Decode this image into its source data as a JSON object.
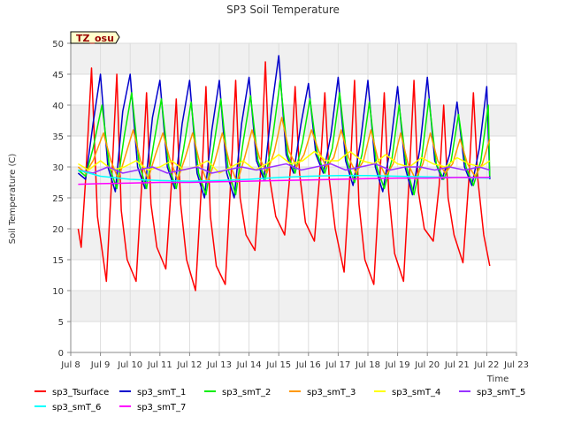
{
  "chart_data": {
    "type": "line",
    "title": "SP3 Soil Temperature",
    "xlabel": "Time",
    "ylabel": "Soil Temperature (C)",
    "badge": "TZ_osu",
    "xlim": [
      8,
      23
    ],
    "ylim": [
      0,
      50
    ],
    "x_ticks": [
      {
        "v": 8,
        "label": "Jul 8"
      },
      {
        "v": 9,
        "label": "Jul 9"
      },
      {
        "v": 10,
        "label": "Jul 10"
      },
      {
        "v": 11,
        "label": "Jul 11"
      },
      {
        "v": 12,
        "label": "Jul 12"
      },
      {
        "v": 13,
        "label": "Jul 13"
      },
      {
        "v": 14,
        "label": "Jul 14"
      },
      {
        "v": 15,
        "label": "Jul 15"
      },
      {
        "v": 16,
        "label": "Jul 16"
      },
      {
        "v": 17,
        "label": "Jul 17"
      },
      {
        "v": 18,
        "label": "Jul 18"
      },
      {
        "v": 19,
        "label": "Jul 19"
      },
      {
        "v": 20,
        "label": "Jul 20"
      },
      {
        "v": 21,
        "label": "Jul 21"
      },
      {
        "v": 22,
        "label": "Jul 22"
      },
      {
        "v": 23,
        "label": "Jul 23"
      }
    ],
    "y_ticks": [
      0,
      5,
      10,
      15,
      20,
      25,
      30,
      35,
      40,
      45,
      50
    ],
    "grid": true,
    "legend_position": "bottom",
    "series": [
      {
        "name": "sp3_Tsurface",
        "color": "#ff0000",
        "x": [
          8.25,
          8.35,
          8.5,
          8.7,
          8.9,
          9.2,
          9.4,
          9.55,
          9.7,
          9.9,
          10.2,
          10.4,
          10.55,
          10.7,
          10.9,
          11.2,
          11.4,
          11.55,
          11.7,
          11.9,
          12.2,
          12.4,
          12.55,
          12.7,
          12.9,
          13.2,
          13.4,
          13.55,
          13.7,
          13.9,
          14.2,
          14.4,
          14.55,
          14.7,
          14.9,
          15.2,
          15.4,
          15.55,
          15.7,
          15.9,
          16.2,
          16.4,
          16.55,
          16.7,
          16.9,
          17.2,
          17.4,
          17.55,
          17.7,
          17.9,
          18.2,
          18.4,
          18.55,
          18.7,
          18.9,
          19.2,
          19.4,
          19.55,
          19.7,
          19.9,
          20.2,
          20.4,
          20.55,
          20.7,
          20.9,
          21.2,
          21.4,
          21.55,
          21.7,
          21.9,
          22.1
        ],
        "y": [
          20,
          17,
          28,
          46,
          22,
          11.5,
          30,
          45,
          23,
          15,
          11.5,
          28,
          42,
          24,
          17,
          13.5,
          28,
          41,
          24,
          15,
          10,
          27,
          43,
          22,
          14,
          11,
          29,
          44,
          25,
          19,
          16.5,
          30,
          47,
          28,
          22,
          19,
          30,
          43,
          29,
          21,
          18,
          30,
          42,
          28,
          20,
          13,
          29,
          44,
          24,
          15,
          11,
          28,
          42,
          26,
          16,
          11.5,
          29,
          44,
          26,
          20,
          18,
          27,
          40,
          25,
          19,
          14.5,
          28,
          42,
          28,
          19,
          14
        ]
      },
      {
        "name": "sp3_smT_1",
        "color": "#0000cc",
        "x": [
          8.25,
          8.5,
          8.75,
          9.0,
          9.25,
          9.5,
          9.75,
          10.0,
          10.25,
          10.5,
          10.75,
          11.0,
          11.25,
          11.5,
          11.75,
          12.0,
          12.25,
          12.5,
          12.75,
          13.0,
          13.25,
          13.5,
          13.75,
          14.0,
          14.25,
          14.5,
          14.75,
          15.0,
          15.25,
          15.5,
          15.75,
          16.0,
          16.25,
          16.5,
          16.75,
          17.0,
          17.25,
          17.5,
          17.75,
          18.0,
          18.25,
          18.5,
          18.75,
          19.0,
          19.25,
          19.5,
          19.75,
          20.0,
          20.25,
          20.5,
          20.75,
          21.0,
          21.25,
          21.5,
          21.75,
          22.0,
          22.1
        ],
        "y": [
          29,
          28,
          37,
          45,
          30,
          26,
          39,
          45,
          30,
          26.5,
          38,
          44,
          30,
          26.5,
          37,
          44,
          29,
          25,
          36,
          44,
          29,
          25,
          37,
          44.5,
          31,
          28,
          39,
          48,
          32,
          29,
          37,
          43.5,
          32,
          29,
          35,
          44.5,
          31,
          27,
          34,
          44,
          30,
          26,
          33,
          43,
          30,
          25.5,
          33,
          44.5,
          31,
          28,
          32,
          40.5,
          30,
          27,
          33,
          43,
          28
        ]
      },
      {
        "name": "sp3_smT_2",
        "color": "#00ee00",
        "x": [
          8.25,
          8.5,
          8.75,
          9.05,
          9.3,
          9.55,
          9.8,
          10.05,
          10.3,
          10.55,
          10.8,
          11.05,
          11.3,
          11.55,
          11.8,
          12.05,
          12.3,
          12.55,
          12.8,
          13.05,
          13.3,
          13.55,
          13.8,
          14.05,
          14.3,
          14.55,
          14.8,
          15.05,
          15.3,
          15.55,
          15.8,
          16.05,
          16.3,
          16.55,
          16.8,
          17.05,
          17.3,
          17.55,
          17.8,
          18.05,
          18.3,
          18.55,
          18.8,
          19.05,
          19.3,
          19.55,
          19.8,
          20.05,
          20.3,
          20.55,
          20.8,
          21.05,
          21.3,
          21.55,
          21.8,
          22.05,
          22.1
        ],
        "y": [
          29.5,
          28.5,
          33,
          40,
          30,
          26.5,
          35,
          42,
          30.5,
          26.5,
          34,
          41,
          30,
          26.5,
          33,
          40.5,
          29,
          25.5,
          33,
          41,
          29.5,
          25.5,
          34,
          41.5,
          31,
          28,
          35,
          44,
          32,
          29,
          34,
          41,
          32,
          29,
          33,
          42,
          31,
          27.5,
          32,
          40.5,
          30,
          26.5,
          31,
          40,
          30,
          25.5,
          31,
          41,
          30.5,
          28,
          31,
          38.5,
          30,
          27,
          31,
          40,
          28.5
        ]
      },
      {
        "name": "sp3_smT_3",
        "color": "#ff9900",
        "x": [
          8.25,
          8.5,
          8.75,
          9.1,
          9.35,
          9.6,
          9.85,
          10.1,
          10.35,
          10.6,
          10.85,
          11.1,
          11.35,
          11.6,
          11.85,
          12.1,
          12.35,
          12.6,
          12.85,
          13.1,
          13.35,
          13.6,
          13.85,
          14.1,
          14.35,
          14.6,
          14.85,
          15.1,
          15.35,
          15.6,
          15.85,
          16.1,
          16.35,
          16.6,
          16.85,
          17.1,
          17.35,
          17.6,
          17.85,
          18.1,
          18.35,
          18.6,
          18.85,
          19.1,
          19.35,
          19.6,
          19.85,
          20.1,
          20.35,
          20.6,
          20.85,
          21.1,
          21.35,
          21.6,
          21.85,
          22.1
        ],
        "y": [
          30,
          29,
          31,
          35.5,
          31,
          28,
          32,
          36,
          31,
          28,
          32,
          35.5,
          31,
          28,
          31.5,
          35.5,
          30.5,
          27.5,
          31,
          35.5,
          30.5,
          27.5,
          31.5,
          36,
          31.5,
          29,
          32.5,
          38,
          32.5,
          30,
          32,
          36,
          32.5,
          30,
          31.5,
          36,
          31.5,
          29,
          31,
          36,
          31,
          28.5,
          30.5,
          35.5,
          30.5,
          28,
          30.5,
          35.5,
          31,
          29,
          30.5,
          34.5,
          30.5,
          28.5,
          30.5,
          34.5
        ]
      },
      {
        "name": "sp3_smT_4",
        "color": "#ffff00",
        "x": [
          8.25,
          8.6,
          9.0,
          9.4,
          9.8,
          10.2,
          10.6,
          11.0,
          11.4,
          11.8,
          12.2,
          12.6,
          13.0,
          13.4,
          13.8,
          14.2,
          14.6,
          15.0,
          15.4,
          15.8,
          16.2,
          16.6,
          17.0,
          17.4,
          17.8,
          18.2,
          18.6,
          19.0,
          19.4,
          19.8,
          20.2,
          20.6,
          21.0,
          21.4,
          21.8,
          22.1
        ],
        "y": [
          30.5,
          29.5,
          31,
          29.5,
          30,
          31,
          29.5,
          30,
          31,
          29.5,
          30,
          31,
          29,
          30,
          31,
          29.5,
          30.5,
          32,
          30.5,
          31,
          32.5,
          31,
          31,
          32.5,
          31,
          30.5,
          32,
          30.5,
          30,
          31.5,
          30.5,
          30,
          31.5,
          30.5,
          30,
          31
        ]
      },
      {
        "name": "sp3_smT_5",
        "color": "#9933ff",
        "x": [
          8.25,
          8.75,
          9.25,
          9.75,
          10.25,
          10.75,
          11.25,
          11.75,
          12.25,
          12.75,
          13.25,
          13.75,
          14.25,
          14.75,
          15.25,
          15.75,
          16.25,
          16.75,
          17.25,
          17.75,
          18.25,
          18.75,
          19.25,
          19.75,
          20.25,
          20.75,
          21.25,
          21.75,
          22.1
        ],
        "y": [
          29.5,
          29,
          30,
          29,
          29.5,
          30,
          29,
          29.5,
          30,
          29,
          29.5,
          30,
          29.5,
          30,
          30.5,
          29.5,
          30,
          30.5,
          29.5,
          30,
          30.5,
          29.5,
          30,
          30,
          29.5,
          30,
          29.5,
          30,
          29.5
        ]
      },
      {
        "name": "sp3_smT_6",
        "color": "#00ffff",
        "x": [
          8.25,
          9.0,
          10.0,
          11.0,
          12.0,
          13.0,
          14.0,
          15.0,
          16.0,
          17.0,
          18.0,
          19.0,
          20.0,
          21.0,
          22.1
        ],
        "y": [
          29.5,
          28.5,
          28,
          27.8,
          27.7,
          27.8,
          28,
          28.3,
          28.5,
          28.6,
          28.6,
          28.5,
          28.4,
          28.3,
          28.2
        ]
      },
      {
        "name": "sp3_smT_7",
        "color": "#ff00ff",
        "x": [
          8.25,
          9.0,
          10.0,
          11.0,
          12.0,
          13.0,
          14.0,
          15.0,
          16.0,
          17.0,
          18.0,
          19.0,
          20.0,
          21.0,
          22.1
        ],
        "y": [
          27.2,
          27.3,
          27.4,
          27.5,
          27.5,
          27.6,
          27.7,
          27.8,
          27.9,
          28.0,
          28.1,
          28.2,
          28.2,
          28.3,
          28.3
        ]
      }
    ]
  }
}
